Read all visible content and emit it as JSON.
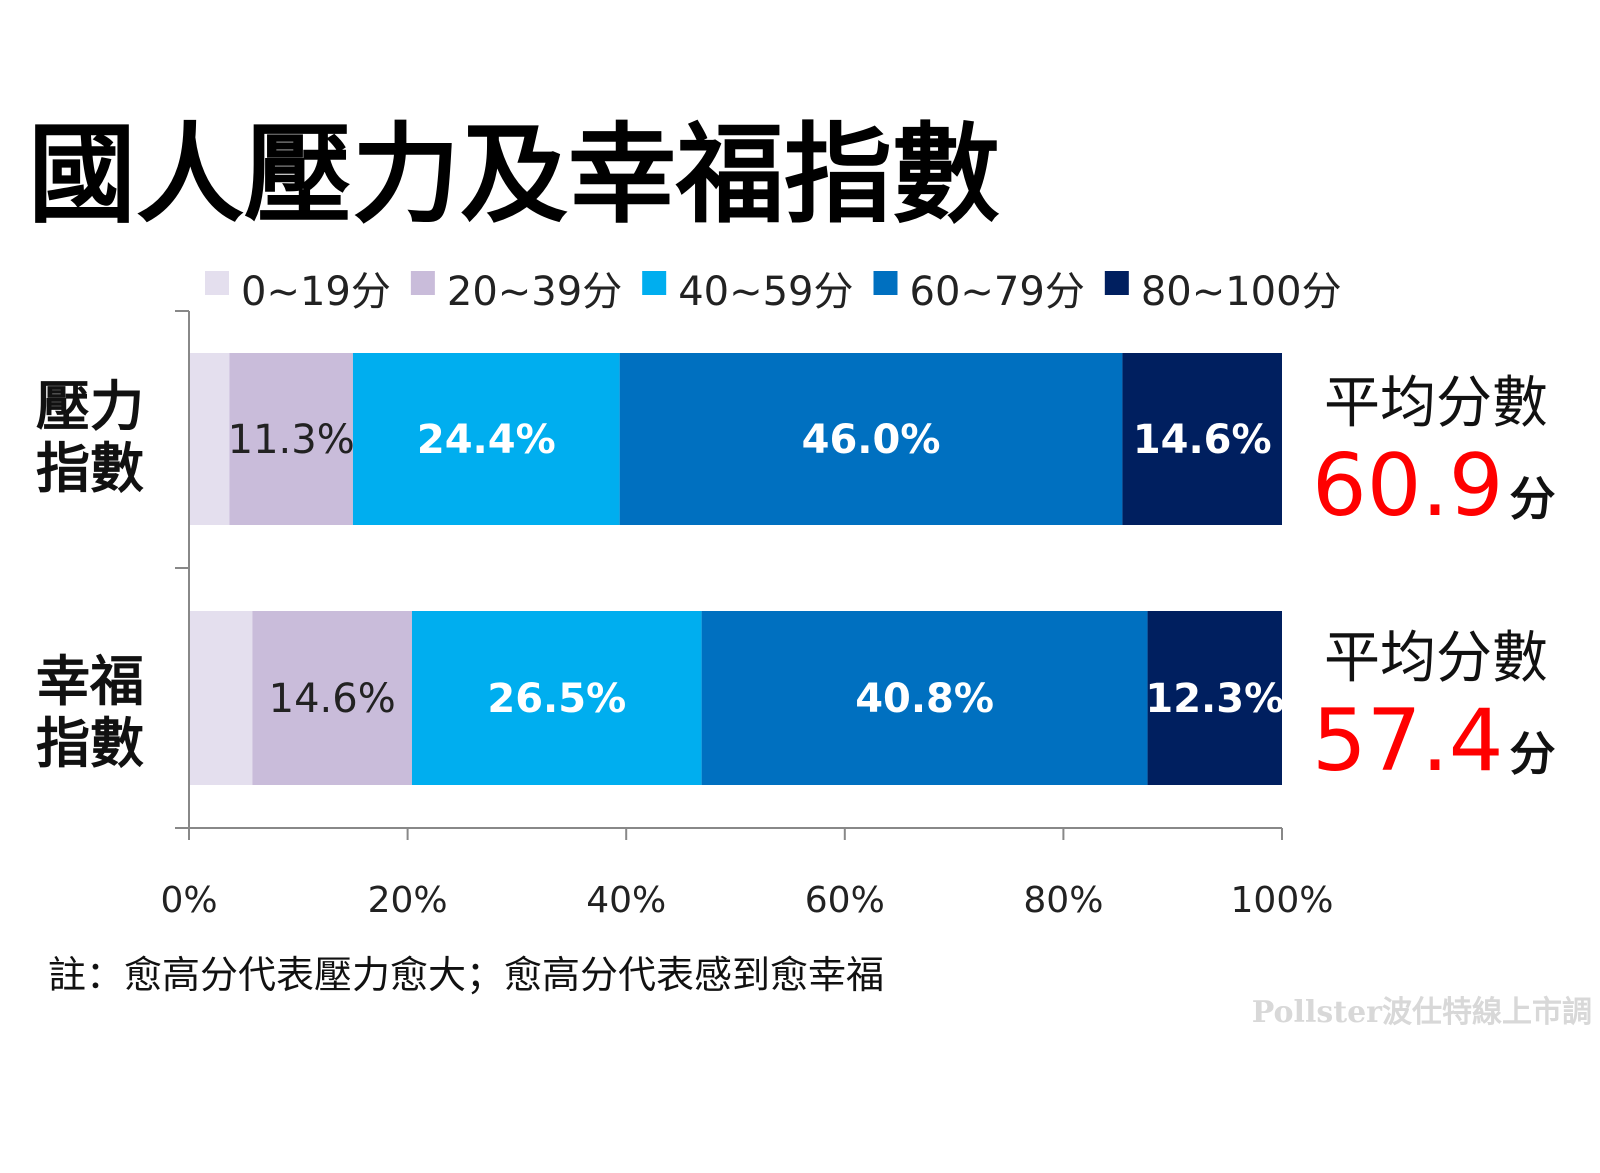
{
  "chart_data": {
    "type": "bar",
    "orientation": "horizontal-stacked-100",
    "title": "國人壓力及幸福指數",
    "legend": [
      "0~19分",
      "20~39分",
      "40~59分",
      "60~79分",
      "80~100分"
    ],
    "legend_position": "top",
    "colors": [
      "#e4dfee",
      "#c9bcda",
      "#00aeef",
      "#0070c0",
      "#001f5f"
    ],
    "categories": [
      {
        "label_lines": [
          "壓力",
          "指數"
        ]
      },
      {
        "label_lines": [
          "幸福",
          "指數"
        ]
      }
    ],
    "series_values": [
      [
        3.7,
        11.3,
        24.4,
        46.0,
        14.6
      ],
      [
        5.8,
        14.6,
        26.5,
        40.8,
        12.3
      ]
    ],
    "data_labels": [
      [
        "",
        "11.3%",
        "24.4%",
        "46.0%",
        "14.6%"
      ],
      [
        "",
        "14.6%",
        "26.5%",
        "40.8%",
        "12.3%"
      ]
    ],
    "xlim": [
      0,
      100
    ],
    "xticks": [
      "0%",
      "20%",
      "40%",
      "60%",
      "80%",
      "100%"
    ],
    "averages": [
      {
        "label": "平均分數",
        "value": "60.9",
        "unit": "分"
      },
      {
        "label": "平均分數",
        "value": "57.4",
        "unit": "分"
      }
    ],
    "note": "註：愈高分代表壓力愈大；愈高分代表感到愈幸福",
    "watermark": "Pollster波仕特線上市調"
  }
}
